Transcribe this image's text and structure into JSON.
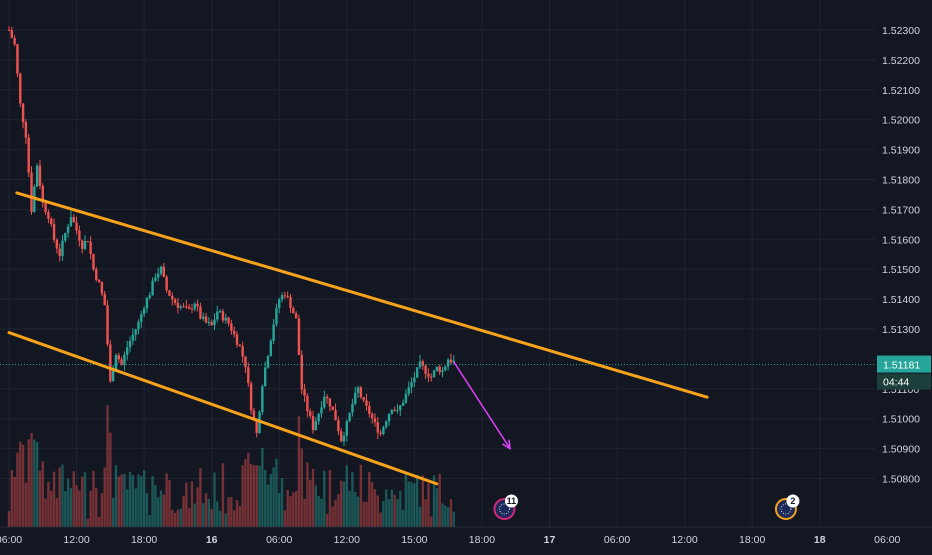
{
  "chart_data": {
    "type": "candlestick",
    "price_axis": {
      "ticks": [
        "1.52300",
        "1.52200",
        "1.52100",
        "1.52000",
        "1.51900",
        "1.51800",
        "1.51700",
        "1.51600",
        "1.51500",
        "1.51400",
        "1.51300",
        "1.51100",
        "1.51000",
        "1.50900",
        "1.50800"
      ],
      "range": [
        1.5076,
        1.5236
      ]
    },
    "time_axis": {
      "labels": [
        "06:00",
        "12:00",
        "18:00",
        "16",
        "06:00",
        "12:00",
        "15:00",
        "18:00",
        "17",
        "06:00",
        "12:00",
        "18:00",
        "18",
        "06:00"
      ],
      "range_hours": [
        0,
        72
      ]
    },
    "current_price": {
      "label": "1.51181",
      "countdown": "04:44",
      "value": 1.51181
    },
    "price_path": [
      [
        0.0,
        1.523
      ],
      [
        0.5,
        1.5225
      ],
      [
        1.0,
        1.5205
      ],
      [
        1.5,
        1.5195
      ],
      [
        2.0,
        1.517
      ],
      [
        2.5,
        1.5185
      ],
      [
        3.0,
        1.5172
      ],
      [
        3.5,
        1.5168
      ],
      [
        4.0,
        1.516
      ],
      [
        4.5,
        1.5155
      ],
      [
        5.0,
        1.5162
      ],
      [
        5.5,
        1.5168
      ],
      [
        6.0,
        1.5163
      ],
      [
        6.5,
        1.5158
      ],
      [
        7.0,
        1.516
      ],
      [
        7.5,
        1.515
      ],
      [
        8.0,
        1.5145
      ],
      [
        8.5,
        1.5138
      ],
      [
        9.0,
        1.5112
      ],
      [
        9.5,
        1.5122
      ],
      [
        10.0,
        1.5118
      ],
      [
        10.5,
        1.5124
      ],
      [
        11.0,
        1.5128
      ],
      [
        11.5,
        1.5132
      ],
      [
        12.0,
        1.5138
      ],
      [
        12.5,
        1.5142
      ],
      [
        13.0,
        1.5148
      ],
      [
        13.5,
        1.515
      ],
      [
        14.0,
        1.5143
      ],
      [
        14.5,
        1.514
      ],
      [
        15.0,
        1.5138
      ],
      [
        15.5,
        1.5137
      ],
      [
        16.0,
        1.5136
      ],
      [
        16.5,
        1.5139
      ],
      [
        17.0,
        1.5134
      ],
      [
        17.5,
        1.5132
      ],
      [
        18.0,
        1.5131
      ],
      [
        18.5,
        1.5136
      ],
      [
        19.0,
        1.5134
      ],
      [
        19.5,
        1.5132
      ],
      [
        20.0,
        1.5128
      ],
      [
        20.5,
        1.5124
      ],
      [
        21.0,
        1.5118
      ],
      [
        21.5,
        1.5104
      ],
      [
        22.0,
        1.5095
      ],
      [
        22.5,
        1.5112
      ],
      [
        23.0,
        1.5122
      ],
      [
        23.5,
        1.5132
      ],
      [
        24.0,
        1.514
      ],
      [
        24.5,
        1.5142
      ],
      [
        25.0,
        1.5138
      ],
      [
        25.5,
        1.5133
      ],
      [
        26.0,
        1.511
      ],
      [
        26.5,
        1.5103
      ],
      [
        27.0,
        1.5097
      ],
      [
        27.5,
        1.5102
      ],
      [
        28.0,
        1.5108
      ],
      [
        28.5,
        1.5105
      ],
      [
        29.0,
        1.51
      ],
      [
        29.5,
        1.5093
      ],
      [
        30.0,
        1.5098
      ],
      [
        30.5,
        1.5105
      ],
      [
        31.0,
        1.511
      ],
      [
        31.5,
        1.5105
      ],
      [
        32.0,
        1.5102
      ],
      [
        32.5,
        1.5098
      ],
      [
        33.0,
        1.5095
      ],
      [
        33.5,
        1.51
      ],
      [
        34.0,
        1.5104
      ],
      [
        34.5,
        1.5102
      ],
      [
        35.0,
        1.5106
      ],
      [
        35.5,
        1.511
      ],
      [
        36.0,
        1.5114
      ],
      [
        36.5,
        1.5118
      ],
      [
        37.0,
        1.5116
      ],
      [
        37.5,
        1.5114
      ],
      [
        38.0,
        1.5117
      ],
      [
        38.5,
        1.5116
      ],
      [
        39.0,
        1.512
      ],
      [
        39.5,
        1.5119
      ]
    ],
    "annotations": [
      {
        "type": "trend_line",
        "color": "#f7a21b",
        "from": [
          0.7,
          1.51755
        ],
        "to": [
          62.0,
          1.51072
        ]
      },
      {
        "type": "trend_line",
        "color": "#f7a21b",
        "from": [
          0.0,
          1.51288
        ],
        "to": [
          38.0,
          1.50782
        ]
      },
      {
        "type": "arrow",
        "color": "#e040fb",
        "from": [
          39.5,
          1.5119
        ],
        "to": [
          44.5,
          1.509
        ]
      }
    ],
    "event_markers": [
      {
        "label": "11",
        "x_hours": 44.0,
        "ring_color": "#d6287a"
      },
      {
        "label": "2",
        "x_hours": 69.0,
        "ring_color": "#f7a21b"
      }
    ],
    "colors": {
      "up": "#26a69a",
      "down": "#ef5350",
      "background": "#131722",
      "grid": "#1f2433",
      "text": "#d1d4dc"
    },
    "grid": true
  }
}
